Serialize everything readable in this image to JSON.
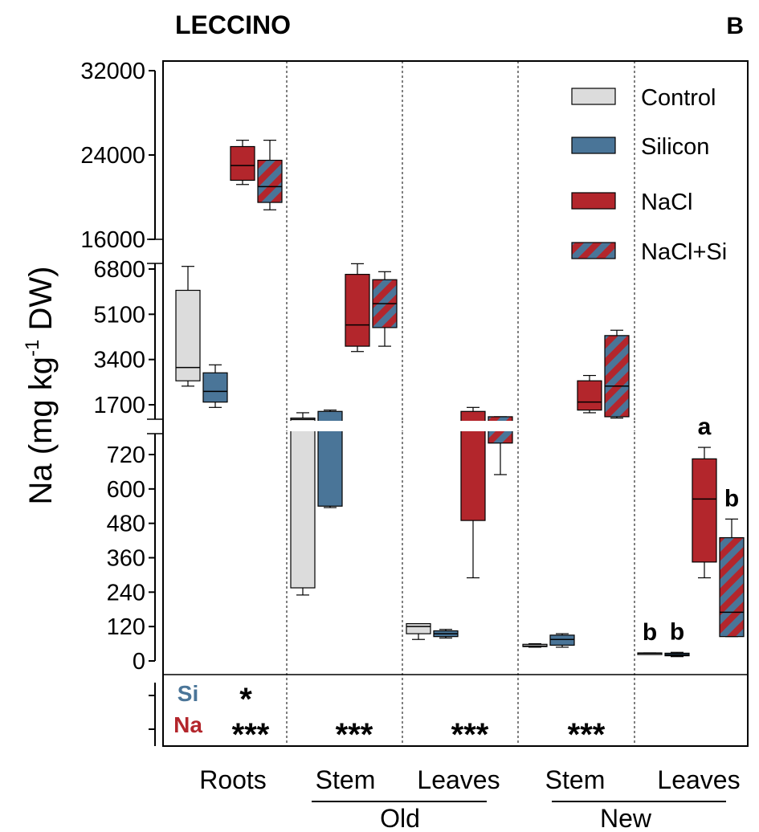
{
  "title": "LECCINO",
  "panel_letter": "B",
  "colors": {
    "control": "#dcdcdc",
    "silicon": "#4a7598",
    "nacl": "#b3262c",
    "stripe_a": "#b3262c",
    "stripe_b": "#4a7598",
    "si_label": "#4a7598",
    "na_label": "#b3262c"
  },
  "chart_data": {
    "type": "box",
    "ylabel_parts": [
      "Na (mg kg",
      "-1",
      " DW)"
    ],
    "y_segments": [
      {
        "range": [
          0,
          800
        ],
        "ticks": [
          "0",
          "120",
          "240",
          "360",
          "480",
          "600",
          "720"
        ]
      },
      {
        "range": [
          800,
          7000
        ],
        "ticks": [
          "1700",
          "3400",
          "5100",
          "6800"
        ]
      },
      {
        "range": [
          16000,
          32000
        ],
        "ticks": [
          "16000",
          "24000",
          "32000"
        ]
      }
    ],
    "groups": [
      "Roots",
      "Stem",
      "Leaves",
      "Stem",
      "Leaves"
    ],
    "supergroups": [
      {
        "label": "Old",
        "groups": [
          1,
          2
        ]
      },
      {
        "label": "New",
        "groups": [
          3,
          4
        ]
      }
    ],
    "legend": [
      {
        "label": "Control",
        "style": "control"
      },
      {
        "label": "Silicon",
        "style": "silicon"
      },
      {
        "label": "NaCl",
        "style": "nacl"
      },
      {
        "label": "NaCl+Si",
        "style": "naclsi"
      }
    ],
    "series": [
      {
        "name": "Control",
        "style": "control",
        "boxes": [
          {
            "min": 2400,
            "q1": 2600,
            "median": 3100,
            "q3": 6000,
            "max": 6900
          },
          {
            "min": 230,
            "q1": 255,
            "median": 1150,
            "q3": 1200,
            "max": 1400
          },
          {
            "min": 75,
            "q1": 95,
            "median": 120,
            "q3": 130,
            "max": 130
          },
          {
            "min": 48,
            "q1": 50,
            "median": 52,
            "q3": 58,
            "max": 60
          },
          {
            "min": 25,
            "q1": 26,
            "median": 27,
            "q3": 28,
            "max": 28
          }
        ]
      },
      {
        "name": "Silicon",
        "style": "silicon",
        "boxes": [
          {
            "min": 1600,
            "q1": 1800,
            "median": 2200,
            "q3": 2900,
            "max": 3200
          },
          {
            "min": 535,
            "q1": 540,
            "median": 1000,
            "q3": 1450,
            "max": 1500
          },
          {
            "min": 80,
            "q1": 85,
            "median": 95,
            "q3": 105,
            "max": 110
          },
          {
            "min": 48,
            "q1": 55,
            "median": 75,
            "q3": 90,
            "max": 95
          },
          {
            "min": 15,
            "q1": 18,
            "median": 22,
            "q3": 27,
            "max": 30
          }
        ]
      },
      {
        "name": "NaCl",
        "style": "nacl",
        "boxes": [
          {
            "min": 21200,
            "q1": 21600,
            "median": 23000,
            "q3": 24800,
            "max": 25400
          },
          {
            "min": 3700,
            "q1": 3900,
            "median": 4700,
            "q3": 6600,
            "max": 7000
          },
          {
            "min": 290,
            "q1": 490,
            "median": 1000,
            "q3": 1450,
            "max": 1600
          },
          {
            "min": 1400,
            "q1": 1500,
            "median": 1800,
            "q3": 2600,
            "max": 2800
          },
          {
            "min": 290,
            "q1": 345,
            "median": 565,
            "q3": 705,
            "max": 745
          }
        ]
      },
      {
        "name": "NaCl+Si",
        "style": "naclsi",
        "boxes": [
          {
            "min": 18800,
            "q1": 19500,
            "median": 21000,
            "q3": 23500,
            "max": 25400
          },
          {
            "min": 3900,
            "q1": 4600,
            "median": 5500,
            "q3": 6400,
            "max": 6700
          },
          {
            "min": 650,
            "q1": 760,
            "median": 1000,
            "q3": 1250,
            "max": 1250
          },
          {
            "min": 1200,
            "q1": 1250,
            "median": 2400,
            "q3": 4300,
            "max": 4500
          },
          {
            "min": 85,
            "q1": 85,
            "median": 170,
            "q3": 430,
            "max": 495
          }
        ]
      }
    ],
    "letters": [
      {
        "group": 4,
        "series": 0,
        "text": "b"
      },
      {
        "group": 4,
        "series": 1,
        "text": "b"
      },
      {
        "group": 4,
        "series": 2,
        "text": "a"
      },
      {
        "group": 4,
        "series": 3,
        "text": "b"
      }
    ],
    "significance": {
      "si_label": "Si",
      "na_label": "Na",
      "si": [
        "*",
        "",
        "",
        "",
        ""
      ],
      "na": [
        "***",
        "***",
        "***",
        "***",
        ""
      ]
    }
  }
}
